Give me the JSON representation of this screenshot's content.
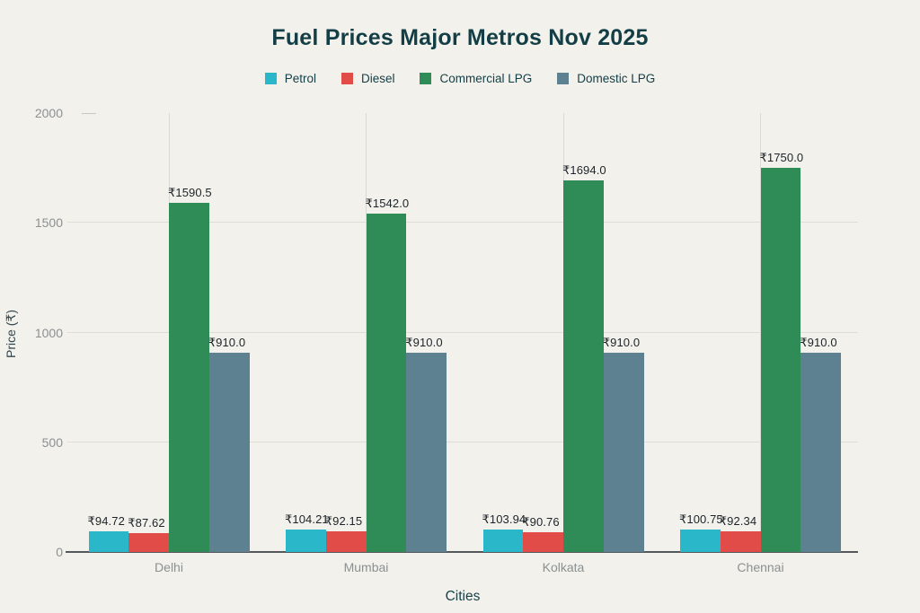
{
  "chart_data": {
    "type": "bar",
    "title": "Fuel Prices Major Metros Nov 2025",
    "xlabel": "Cities",
    "ylabel": "Price (₹)",
    "categories": [
      "Delhi",
      "Mumbai",
      "Kolkata",
      "Chennai"
    ],
    "series": [
      {
        "name": "Petrol",
        "color": "#2ab7ca",
        "values": [
          94.72,
          104.21,
          103.94,
          100.75
        ],
        "display_labels": [
          "₹94.72",
          "₹104.21",
          "₹103.94",
          "₹100.75"
        ]
      },
      {
        "name": "Diesel",
        "color": "#e14b48",
        "values": [
          87.62,
          92.15,
          90.76,
          92.34
        ],
        "display_labels": [
          "₹87.62",
          "₹92.15",
          "₹90.76",
          "₹92.34"
        ]
      },
      {
        "name": "Commercial LPG",
        "color": "#2f8c56",
        "values": [
          1590.5,
          1542.0,
          1694.0,
          1750.0
        ],
        "display_labels": [
          "₹1590.5",
          "₹1542.0",
          "₹1694.0",
          "₹1750.0"
        ]
      },
      {
        "name": "Domestic LPG",
        "color": "#5d8191",
        "values": [
          910.0,
          910.0,
          910.0,
          910.0
        ],
        "display_labels": [
          "₹910.0",
          "₹910.0",
          "₹910.0",
          "₹910.0"
        ]
      }
    ],
    "ylim": [
      0,
      2000
    ],
    "yticks": [
      0,
      500,
      1000,
      1500,
      2000
    ],
    "grid": "horizontal gridlines at 500/1000/1500, vertical gridline at each category center",
    "legend_position": "top center",
    "colors": {
      "background": "#f2f1ec",
      "title_text": "#133e46",
      "tick_text": "#8b9090",
      "axis_line": "#55585a",
      "gridline": "#deddd5",
      "value_label_text": "#1d2429"
    }
  }
}
